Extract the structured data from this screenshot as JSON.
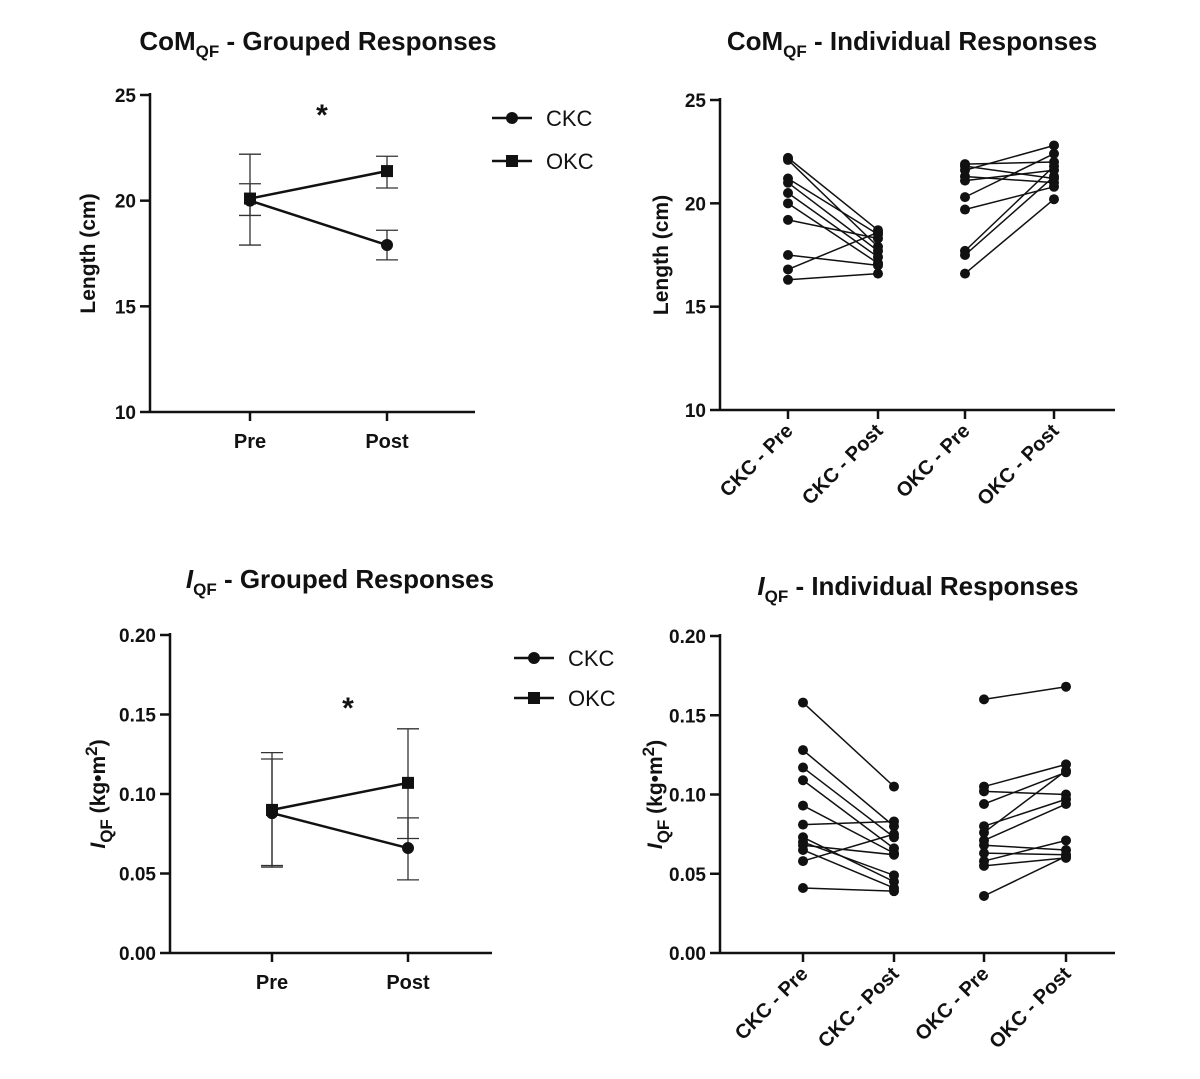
{
  "chart_data": [
    {
      "type": "line",
      "title": {
        "prefix": "CoM",
        "sub": "QF",
        "suffix": " - Grouped Responses"
      },
      "ylabel": "Length (cm)",
      "ylim": [
        10,
        25
      ],
      "yticks": [
        "10",
        "15",
        "20",
        "25"
      ],
      "categories": [
        "Pre",
        "Post"
      ],
      "legend": "right",
      "series": [
        {
          "name": "CKC",
          "marker": "circle",
          "values": [
            20.0,
            17.9
          ],
          "err_low": [
            17.9,
            17.2
          ],
          "err_high": [
            22.2,
            18.6
          ]
        },
        {
          "name": "OKC",
          "marker": "square",
          "values": [
            20.1,
            21.4
          ],
          "err_low": [
            19.3,
            20.6
          ],
          "err_high": [
            20.8,
            22.1
          ]
        }
      ],
      "annotation": "*"
    },
    {
      "type": "line",
      "title": {
        "prefix": "CoM",
        "sub": "QF",
        "suffix": " - Individual Responses"
      },
      "ylabel": "Length (cm)",
      "ylim": [
        10,
        25
      ],
      "yticks": [
        "10",
        "15",
        "20",
        "25"
      ],
      "categories": [
        "CKC - Pre",
        "CKC - Post",
        "OKC - Pre",
        "OKC - Post"
      ],
      "pairs": [
        {
          "from": 0,
          "to": 1,
          "values": [
            [
              22.2,
              18.7
            ],
            [
              22.1,
              17.9
            ],
            [
              21.2,
              18.5
            ],
            [
              21.0,
              17.7
            ],
            [
              20.5,
              17.4
            ],
            [
              20.0,
              17.1
            ],
            [
              19.2,
              18.3
            ],
            [
              17.5,
              17.0
            ],
            [
              16.8,
              18.6
            ],
            [
              16.3,
              16.6
            ]
          ]
        },
        {
          "from": 2,
          "to": 3,
          "values": [
            [
              21.9,
              22.0
            ],
            [
              21.8,
              21.2
            ],
            [
              21.6,
              22.8
            ],
            [
              21.3,
              21.0
            ],
            [
              21.1,
              21.6
            ],
            [
              20.3,
              22.4
            ],
            [
              19.7,
              20.8
            ],
            [
              17.7,
              21.8
            ],
            [
              17.5,
              21.3
            ],
            [
              16.6,
              20.2
            ]
          ]
        }
      ]
    },
    {
      "type": "line",
      "title": {
        "prefix": "I",
        "sub": "QF",
        "suffix": " - Grouped Responses"
      },
      "ylabel": {
        "prefix": "I",
        "sub": "QF",
        "suffix": " (kg•m",
        "sup": "2",
        "end": ")"
      },
      "ylim": [
        0,
        0.2
      ],
      "yticks": [
        "0.00",
        "0.05",
        "0.10",
        "0.15",
        "0.20"
      ],
      "categories": [
        "Pre",
        "Post"
      ],
      "legend": "right",
      "series": [
        {
          "name": "CKC",
          "marker": "circle",
          "values": [
            0.088,
            0.066
          ],
          "err_low": [
            0.054,
            0.046
          ],
          "err_high": [
            0.122,
            0.085
          ]
        },
        {
          "name": "OKC",
          "marker": "square",
          "values": [
            0.09,
            0.107
          ],
          "err_low": [
            0.055,
            0.072
          ],
          "err_high": [
            0.126,
            0.141
          ]
        }
      ],
      "annotation": "*"
    },
    {
      "type": "line",
      "title": {
        "prefix": "I",
        "sub": "QF",
        "suffix": " - Individual Responses"
      },
      "ylabel": {
        "prefix": "I",
        "sub": "QF",
        "suffix": " (kg•m",
        "sup": "2",
        "end": ")"
      },
      "ylim": [
        0,
        0.2
      ],
      "yticks": [
        "0.00",
        "0.05",
        "0.10",
        "0.15",
        "0.20"
      ],
      "categories": [
        "CKC - Pre",
        "CKC - Post",
        "OKC - Pre",
        "OKC - Post"
      ],
      "pairs": [
        {
          "from": 0,
          "to": 1,
          "values": [
            [
              0.158,
              0.105
            ],
            [
              0.128,
              0.08
            ],
            [
              0.117,
              0.073
            ],
            [
              0.109,
              0.066
            ],
            [
              0.093,
              0.063
            ],
            [
              0.081,
              0.083
            ],
            [
              0.073,
              0.045
            ],
            [
              0.07,
              0.049
            ],
            [
              0.068,
              0.062
            ],
            [
              0.065,
              0.041
            ],
            [
              0.058,
              0.075
            ],
            [
              0.041,
              0.039
            ]
          ]
        },
        {
          "from": 2,
          "to": 3,
          "values": [
            [
              0.16,
              0.168
            ],
            [
              0.105,
              0.119
            ],
            [
              0.102,
              0.1
            ],
            [
              0.094,
              0.114
            ],
            [
              0.08,
              0.097
            ],
            [
              0.076,
              0.115
            ],
            [
              0.071,
              0.094
            ],
            [
              0.068,
              0.065
            ],
            [
              0.063,
              0.062
            ],
            [
              0.058,
              0.071
            ],
            [
              0.055,
              0.06
            ],
            [
              0.036,
              0.061
            ]
          ]
        }
      ]
    }
  ]
}
